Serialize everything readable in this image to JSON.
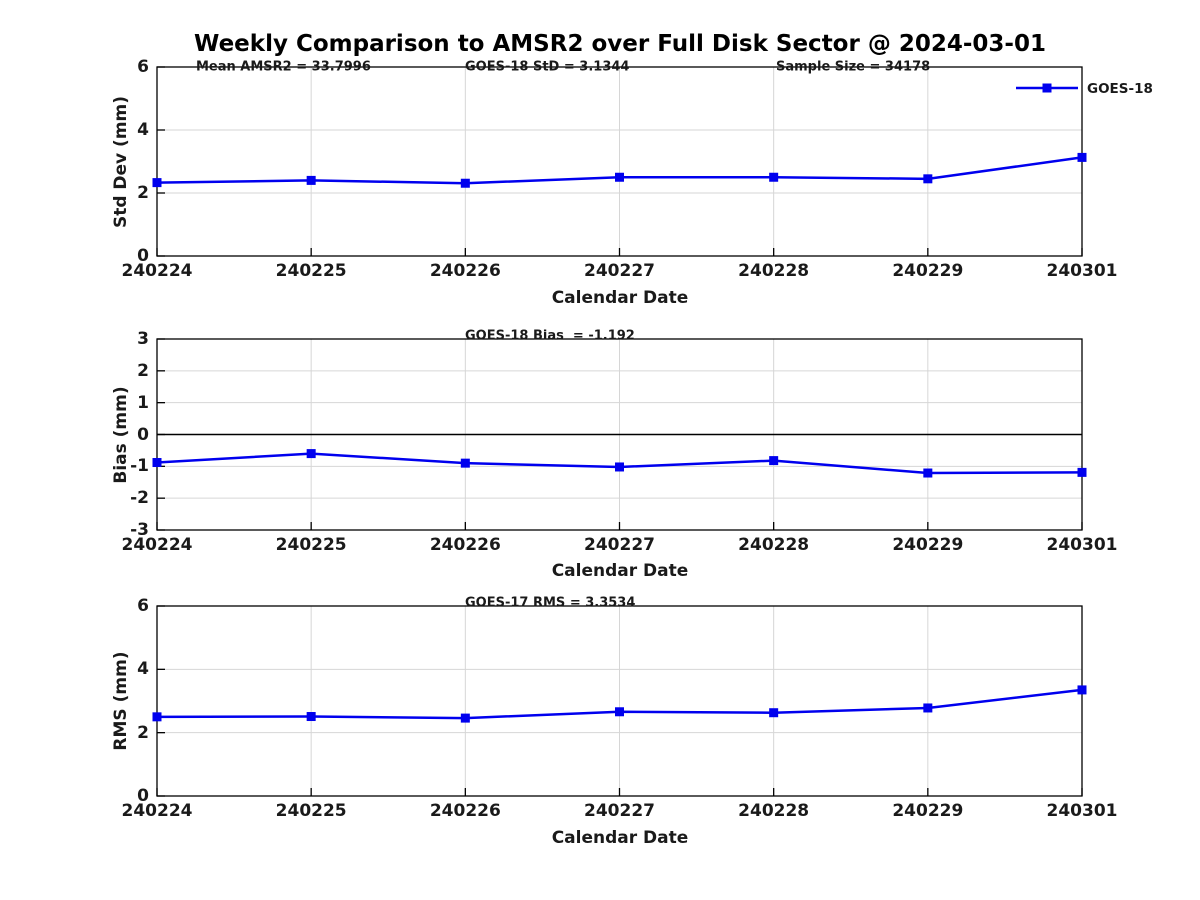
{
  "title": "Weekly Comparison to AMSR2 over Full Disk Sector @ 2024-03-01",
  "legend": {
    "label": "GOES-18",
    "marker": "square"
  },
  "colors": {
    "line": "#0000EE",
    "grid": "#D6D6D6",
    "axis": "#000000",
    "zero_line": "#000000",
    "text": "#1A1A1A"
  },
  "chart_data": [
    {
      "type": "line",
      "categories": [
        "240224",
        "240225",
        "240226",
        "240227",
        "240228",
        "240229",
        "240301"
      ],
      "series": [
        {
          "name": "GOES-18",
          "values": [
            2.33,
            2.4,
            2.31,
            2.5,
            2.5,
            2.45,
            3.13
          ]
        }
      ],
      "annotations": [
        "Mean AMSR2 = 33.7996",
        "GOES-18 StD = 3.1344",
        "Sample Size = 34178"
      ],
      "xlabel": "Calendar Date",
      "ylabel": "Std Dev (mm)",
      "ylim": [
        0,
        6
      ],
      "yticks": [
        0,
        2,
        4,
        6
      ],
      "grid": true,
      "legend_position": "top-right-outside"
    },
    {
      "type": "line",
      "categories": [
        "240224",
        "240225",
        "240226",
        "240227",
        "240228",
        "240229",
        "240301"
      ],
      "series": [
        {
          "name": "GOES-18",
          "values": [
            -0.88,
            -0.6,
            -0.9,
            -1.02,
            -0.82,
            -1.21,
            -1.19
          ]
        }
      ],
      "annotations": [
        "GOES-18 Bias  = -1.192"
      ],
      "xlabel": "Calendar Date",
      "ylabel": "Bias (mm)",
      "ylim": [
        -3,
        3
      ],
      "yticks": [
        -3,
        -2,
        -1,
        0,
        1,
        2,
        3
      ],
      "zero_line": true,
      "grid": true
    },
    {
      "type": "line",
      "categories": [
        "240224",
        "240225",
        "240226",
        "240227",
        "240228",
        "240229",
        "240301"
      ],
      "series": [
        {
          "name": "GOES-18",
          "values": [
            2.5,
            2.51,
            2.46,
            2.66,
            2.63,
            2.78,
            3.35
          ]
        }
      ],
      "annotations": [
        "GOES-17 RMS = 3.3534"
      ],
      "xlabel": "Calendar Date",
      "ylabel": "RMS (mm)",
      "ylim": [
        0,
        6
      ],
      "yticks": [
        0,
        2,
        4,
        6
      ],
      "grid": true
    }
  ]
}
